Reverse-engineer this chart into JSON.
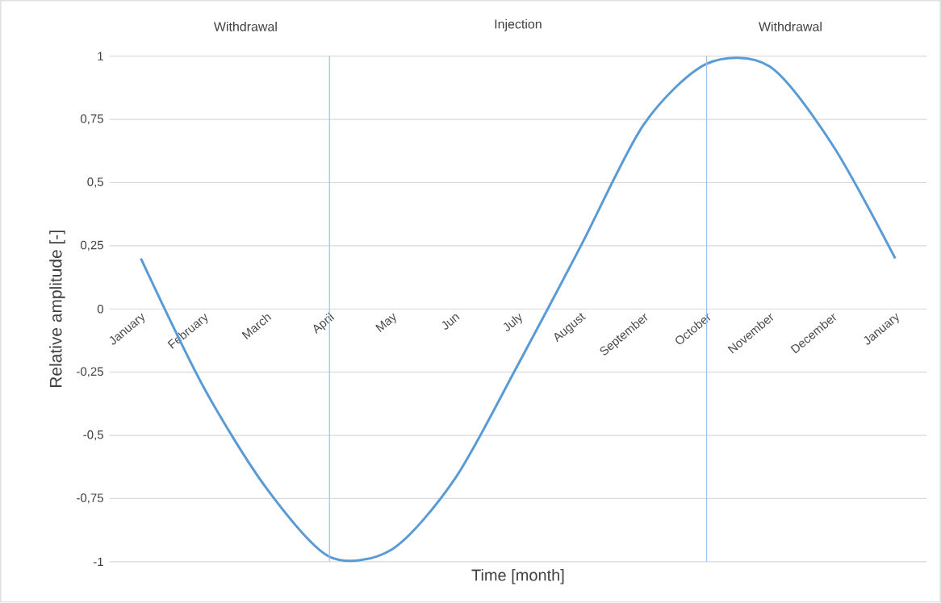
{
  "chart_data": {
    "type": "line",
    "ylabel": "Relative amplitude [-]",
    "xlabel": "Time [month]",
    "categories": [
      "January",
      "February",
      "March",
      "April",
      "May",
      "Jun",
      "July",
      "August",
      "September",
      "October",
      "November",
      "December",
      "January"
    ],
    "series": [
      {
        "color": "#5b9bd5",
        "values": [
          0.2,
          -0.31,
          -0.71,
          -0.98,
          -0.95,
          -0.67,
          -0.22,
          0.25,
          0.73,
          0.97,
          0.96,
          0.65,
          0.2
        ]
      }
    ],
    "ylim": [
      -1,
      1
    ],
    "yticks": [
      1,
      {
        "value": 0.75,
        "label": "0,75"
      },
      {
        "value": 0.5,
        "label": "0,5"
      },
      {
        "value": 0.25,
        "label": "0,25"
      },
      0,
      {
        "value": -0.25,
        "label": "-0,25"
      },
      {
        "value": -0.5,
        "label": "-0,5"
      },
      {
        "value": -0.75,
        "label": "-0,75"
      },
      -1
    ],
    "annotations": [
      "Withdrawal",
      "Injection",
      "Withdrawal"
    ],
    "ref_lines": [
      {
        "axis": "x",
        "value": "April",
        "color": "#9dc3e6"
      },
      {
        "axis": "x",
        "value": "October",
        "color": "#9dc3e6"
      }
    ],
    "grid": "y",
    "marker": "none",
    "line_style": "solid"
  }
}
